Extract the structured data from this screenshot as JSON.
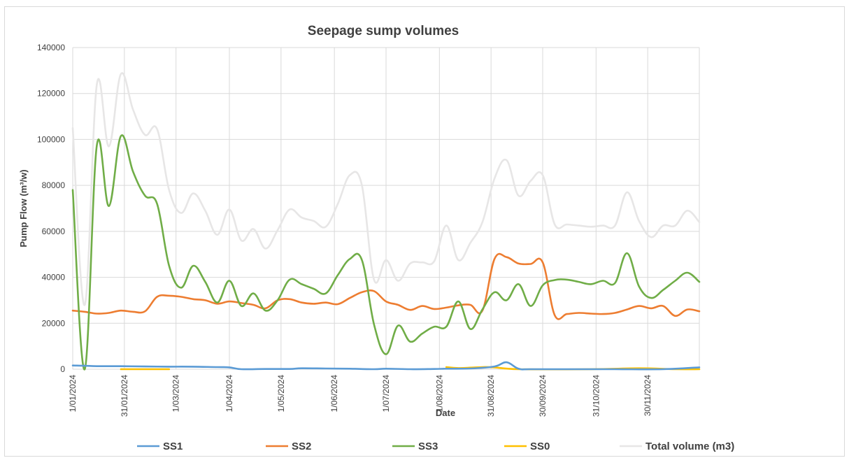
{
  "chart_data": {
    "type": "line",
    "title": "Seepage sump volumes",
    "xlabel": "Date",
    "ylabel": "Pump Flow (m³/w)",
    "x_tick_labels": [
      "1/01/2024",
      "31/01/2024",
      "1/03/2024",
      "1/04/2024",
      "1/05/2024",
      "1/06/2024",
      "1/07/2024",
      "1/08/2024",
      "31/08/2024",
      "30/09/2024",
      "31/10/2024",
      "30/11/2024"
    ],
    "y_tick_labels": [
      "0",
      "20000",
      "40000",
      "60000",
      "80000",
      "100000",
      "120000",
      "140000"
    ],
    "ylim": [
      0,
      140000
    ],
    "grid": true,
    "legend_position": "bottom",
    "series": [
      {
        "name": "SS1",
        "color": "#5b9bd5",
        "points": [
          [
            "2024-01-01",
            1600
          ],
          [
            "2024-01-08",
            1500
          ],
          [
            "2024-01-15",
            1300
          ],
          [
            "2024-01-29",
            1300
          ],
          [
            "2024-02-12",
            1200
          ],
          [
            "2024-02-26",
            1100
          ],
          [
            "2024-03-11",
            1100
          ],
          [
            "2024-03-25",
            900
          ],
          [
            "2024-04-01",
            800
          ],
          [
            "2024-04-08",
            0
          ],
          [
            "2024-04-22",
            100
          ],
          [
            "2024-05-06",
            100
          ],
          [
            "2024-05-13",
            400
          ],
          [
            "2024-05-27",
            300
          ],
          [
            "2024-06-10",
            200
          ],
          [
            "2024-06-24",
            0
          ],
          [
            "2024-07-01",
            200
          ],
          [
            "2024-07-15",
            0
          ],
          [
            "2024-07-29",
            100
          ],
          [
            "2024-08-05",
            200
          ],
          [
            "2024-08-19",
            300
          ],
          [
            "2024-09-02",
            1200
          ],
          [
            "2024-09-09",
            3000
          ],
          [
            "2024-09-16",
            200
          ],
          [
            "2024-09-23",
            0
          ],
          [
            "2024-10-14",
            0
          ],
          [
            "2024-11-11",
            0
          ],
          [
            "2024-12-09",
            0
          ],
          [
            "2024-12-30",
            800
          ]
        ]
      },
      {
        "name": "SS2",
        "color": "#ed7d31",
        "points": [
          [
            "2024-01-01",
            25500
          ],
          [
            "2024-01-08",
            25000
          ],
          [
            "2024-01-15",
            24200
          ],
          [
            "2024-01-22",
            24500
          ],
          [
            "2024-01-29",
            25500
          ],
          [
            "2024-02-05",
            25000
          ],
          [
            "2024-02-12",
            25200
          ],
          [
            "2024-02-19",
            31500
          ],
          [
            "2024-02-26",
            32000
          ],
          [
            "2024-03-04",
            31500
          ],
          [
            "2024-03-11",
            30500
          ],
          [
            "2024-03-18",
            30000
          ],
          [
            "2024-03-25",
            28500
          ],
          [
            "2024-04-01",
            29500
          ],
          [
            "2024-04-08",
            28800
          ],
          [
            "2024-04-15",
            28000
          ],
          [
            "2024-04-22",
            26500
          ],
          [
            "2024-04-29",
            30000
          ],
          [
            "2024-05-06",
            30500
          ],
          [
            "2024-05-13",
            29000
          ],
          [
            "2024-05-20",
            28500
          ],
          [
            "2024-05-27",
            29000
          ],
          [
            "2024-06-03",
            28300
          ],
          [
            "2024-06-10",
            31000
          ],
          [
            "2024-06-17",
            33500
          ],
          [
            "2024-06-24",
            34000
          ],
          [
            "2024-07-01",
            29500
          ],
          [
            "2024-07-08",
            28000
          ],
          [
            "2024-07-15",
            25800
          ],
          [
            "2024-07-22",
            27500
          ],
          [
            "2024-07-29",
            26200
          ],
          [
            "2024-08-05",
            26800
          ],
          [
            "2024-08-12",
            27800
          ],
          [
            "2024-08-19",
            28000
          ],
          [
            "2024-08-26",
            25500
          ],
          [
            "2024-09-02",
            48000
          ],
          [
            "2024-09-09",
            48800
          ],
          [
            "2024-09-16",
            46000
          ],
          [
            "2024-09-23",
            45800
          ],
          [
            "2024-09-30",
            46500
          ],
          [
            "2024-10-07",
            23500
          ],
          [
            "2024-10-14",
            24000
          ],
          [
            "2024-10-21",
            24500
          ],
          [
            "2024-10-28",
            24200
          ],
          [
            "2024-11-04",
            24000
          ],
          [
            "2024-11-11",
            24500
          ],
          [
            "2024-11-18",
            26000
          ],
          [
            "2024-11-25",
            27500
          ],
          [
            "2024-12-02",
            26500
          ],
          [
            "2024-12-09",
            27500
          ],
          [
            "2024-12-16",
            23200
          ],
          [
            "2024-12-23",
            26000
          ],
          [
            "2024-12-30",
            25200
          ]
        ]
      },
      {
        "name": "SS3",
        "color": "#70ad47",
        "points": [
          [
            "2024-01-01",
            78000
          ],
          [
            "2024-01-08",
            0
          ],
          [
            "2024-01-15",
            97500
          ],
          [
            "2024-01-22",
            71000
          ],
          [
            "2024-01-29",
            101500
          ],
          [
            "2024-02-05",
            86000
          ],
          [
            "2024-02-12",
            75500
          ],
          [
            "2024-02-19",
            72000
          ],
          [
            "2024-02-26",
            45000
          ],
          [
            "2024-03-04",
            35500
          ],
          [
            "2024-03-11",
            45000
          ],
          [
            "2024-03-18",
            38000
          ],
          [
            "2024-03-25",
            29000
          ],
          [
            "2024-04-01",
            38500
          ],
          [
            "2024-04-08",
            27500
          ],
          [
            "2024-04-15",
            33000
          ],
          [
            "2024-04-22",
            25500
          ],
          [
            "2024-04-29",
            30000
          ],
          [
            "2024-05-06",
            39000
          ],
          [
            "2024-05-13",
            37000
          ],
          [
            "2024-05-20",
            35000
          ],
          [
            "2024-05-27",
            33000
          ],
          [
            "2024-06-03",
            41000
          ],
          [
            "2024-06-10",
            48000
          ],
          [
            "2024-06-17",
            47500
          ],
          [
            "2024-06-24",
            19500
          ],
          [
            "2024-07-01",
            6500
          ],
          [
            "2024-07-08",
            19000
          ],
          [
            "2024-07-15",
            12000
          ],
          [
            "2024-07-22",
            15500
          ],
          [
            "2024-07-29",
            18500
          ],
          [
            "2024-08-05",
            18500
          ],
          [
            "2024-08-12",
            29500
          ],
          [
            "2024-08-19",
            17500
          ],
          [
            "2024-08-26",
            26000
          ],
          [
            "2024-09-02",
            33500
          ],
          [
            "2024-09-09",
            30000
          ],
          [
            "2024-09-16",
            37000
          ],
          [
            "2024-09-23",
            27500
          ],
          [
            "2024-09-30",
            36500
          ],
          [
            "2024-10-07",
            38800
          ],
          [
            "2024-10-14",
            39000
          ],
          [
            "2024-10-21",
            38000
          ],
          [
            "2024-10-28",
            37000
          ],
          [
            "2024-11-04",
            38500
          ],
          [
            "2024-11-11",
            37500
          ],
          [
            "2024-11-18",
            50500
          ],
          [
            "2024-11-25",
            36000
          ],
          [
            "2024-12-02",
            31000
          ],
          [
            "2024-12-09",
            34500
          ],
          [
            "2024-12-16",
            38500
          ],
          [
            "2024-12-23",
            42000
          ],
          [
            "2024-12-30",
            38000
          ]
        ]
      },
      {
        "name": "SS0",
        "color": "#ffc000",
        "points": [
          [
            "2024-01-29",
            0
          ],
          [
            "2024-02-26",
            0
          ],
          null,
          [
            "2024-08-05",
            900
          ],
          [
            "2024-08-12",
            500
          ],
          [
            "2024-08-26",
            900
          ],
          [
            "2024-09-02",
            800
          ],
          [
            "2024-09-16",
            0
          ],
          [
            "2024-10-28",
            0
          ],
          [
            "2024-11-25",
            400
          ],
          [
            "2024-12-16",
            0
          ],
          [
            "2024-12-30",
            0
          ]
        ]
      },
      {
        "name": "Total volume (m3)",
        "color": "#e7e6e6",
        "points": [
          [
            "2024-01-01",
            105000
          ],
          [
            "2024-01-08",
            28000
          ],
          [
            "2024-01-15",
            124000
          ],
          [
            "2024-01-22",
            97000
          ],
          [
            "2024-01-29",
            128500
          ],
          [
            "2024-02-05",
            113000
          ],
          [
            "2024-02-12",
            102000
          ],
          [
            "2024-02-19",
            104500
          ],
          [
            "2024-02-26",
            78000
          ],
          [
            "2024-03-04",
            68000
          ],
          [
            "2024-03-11",
            76500
          ],
          [
            "2024-03-18",
            69000
          ],
          [
            "2024-03-25",
            58500
          ],
          [
            "2024-04-01",
            69500
          ],
          [
            "2024-04-08",
            56000
          ],
          [
            "2024-04-15",
            61000
          ],
          [
            "2024-04-22",
            52500
          ],
          [
            "2024-04-29",
            60500
          ],
          [
            "2024-05-06",
            69500
          ],
          [
            "2024-05-13",
            66000
          ],
          [
            "2024-05-20",
            64500
          ],
          [
            "2024-05-27",
            62000
          ],
          [
            "2024-06-03",
            72000
          ],
          [
            "2024-06-10",
            84500
          ],
          [
            "2024-06-17",
            80000
          ],
          [
            "2024-06-24",
            39000
          ],
          [
            "2024-07-01",
            47500
          ],
          [
            "2024-07-08",
            38500
          ],
          [
            "2024-07-15",
            46000
          ],
          [
            "2024-07-22",
            46500
          ],
          [
            "2024-07-29",
            47000
          ],
          [
            "2024-08-05",
            62500
          ],
          [
            "2024-08-12",
            47500
          ],
          [
            "2024-08-19",
            55000
          ],
          [
            "2024-08-26",
            64000
          ],
          [
            "2024-09-02",
            83000
          ],
          [
            "2024-09-09",
            91000
          ],
          [
            "2024-09-16",
            75500
          ],
          [
            "2024-09-23",
            82000
          ],
          [
            "2024-09-30",
            84500
          ],
          [
            "2024-10-07",
            63000
          ],
          [
            "2024-10-14",
            63000
          ],
          [
            "2024-10-21",
            62500
          ],
          [
            "2024-10-28",
            62000
          ],
          [
            "2024-11-04",
            62500
          ],
          [
            "2024-11-11",
            62500
          ],
          [
            "2024-11-18",
            77000
          ],
          [
            "2024-11-25",
            64500
          ],
          [
            "2024-12-02",
            57500
          ],
          [
            "2024-12-09",
            62500
          ],
          [
            "2024-12-16",
            62500
          ],
          [
            "2024-12-23",
            69000
          ],
          [
            "2024-12-30",
            64000
          ]
        ]
      }
    ]
  }
}
